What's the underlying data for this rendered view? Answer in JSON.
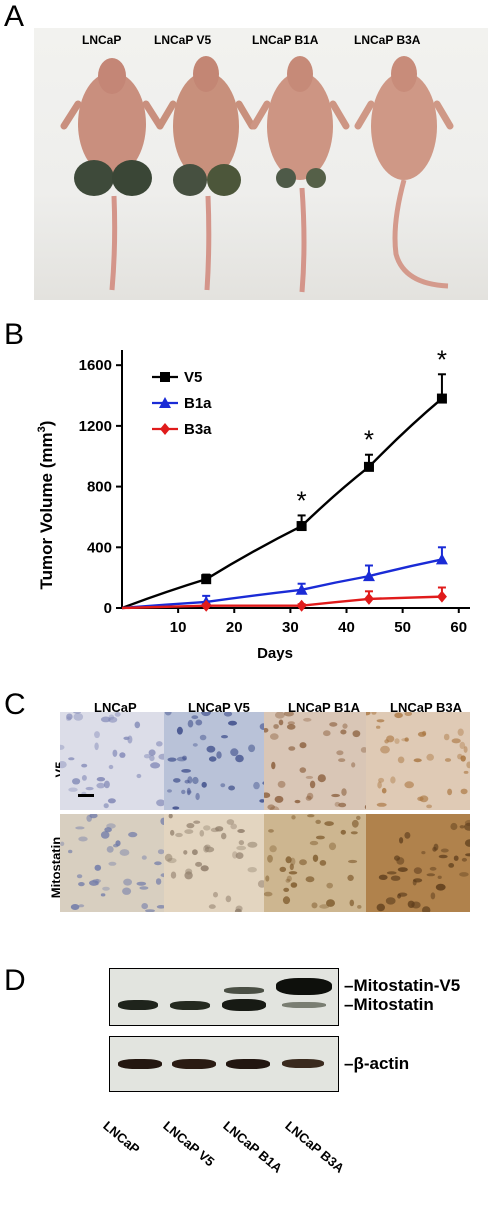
{
  "panels": {
    "a": "A",
    "b": "B",
    "c": "C",
    "d": "D"
  },
  "panel_a": {
    "labels": [
      "LNCaP",
      "LNCaP V5",
      "LNCaP B1A",
      "LNCaP B3A"
    ]
  },
  "chart_data": {
    "type": "line",
    "xlabel": "Days",
    "ylabel": "Tumor Volume",
    "ylabel_unit_base": "(mm",
    "ylabel_unit_sup": "3",
    "ylabel_unit_end": ")",
    "x_ticks": [
      "10",
      "20",
      "30",
      "40",
      "50",
      "60"
    ],
    "y_ticks": [
      "0",
      "400",
      "800",
      "1200",
      "1600"
    ],
    "xlim": [
      0,
      62
    ],
    "ylim": [
      0,
      1700
    ],
    "significance_marker": "*",
    "significance_x": [
      32,
      44,
      57
    ],
    "series": [
      {
        "name": "V5",
        "marker": "square",
        "color": "#000000",
        "x": [
          0,
          15,
          32,
          44,
          57
        ],
        "y": [
          0,
          190,
          540,
          930,
          1380
        ],
        "err": [
          0,
          30,
          70,
          80,
          160
        ]
      },
      {
        "name": "B1a",
        "marker": "triangle",
        "color": "#1a2bd6",
        "x": [
          0,
          15,
          32,
          44,
          57
        ],
        "y": [
          0,
          40,
          120,
          210,
          320
        ],
        "err": [
          0,
          40,
          40,
          70,
          80
        ]
      },
      {
        "name": "B3a",
        "marker": "diamond",
        "color": "#e01b1b",
        "x": [
          0,
          15,
          32,
          44,
          57
        ],
        "y": [
          0,
          15,
          15,
          60,
          75
        ],
        "err": [
          0,
          10,
          10,
          50,
          60
        ]
      }
    ]
  },
  "panel_c": {
    "columns": [
      "LNCaP",
      "LNCaP V5",
      "LNCaP B1A",
      "LNCaP B3A"
    ],
    "rows": [
      "V5",
      "Mitostatin"
    ]
  },
  "panel_d": {
    "band_labels": [
      "Mitostatin-V5",
      "Mitostatin",
      "β-actin"
    ],
    "lanes": [
      "LNCaP",
      "LNCaP V5",
      "LNCaP B1A",
      "LNCaP B3A"
    ]
  }
}
